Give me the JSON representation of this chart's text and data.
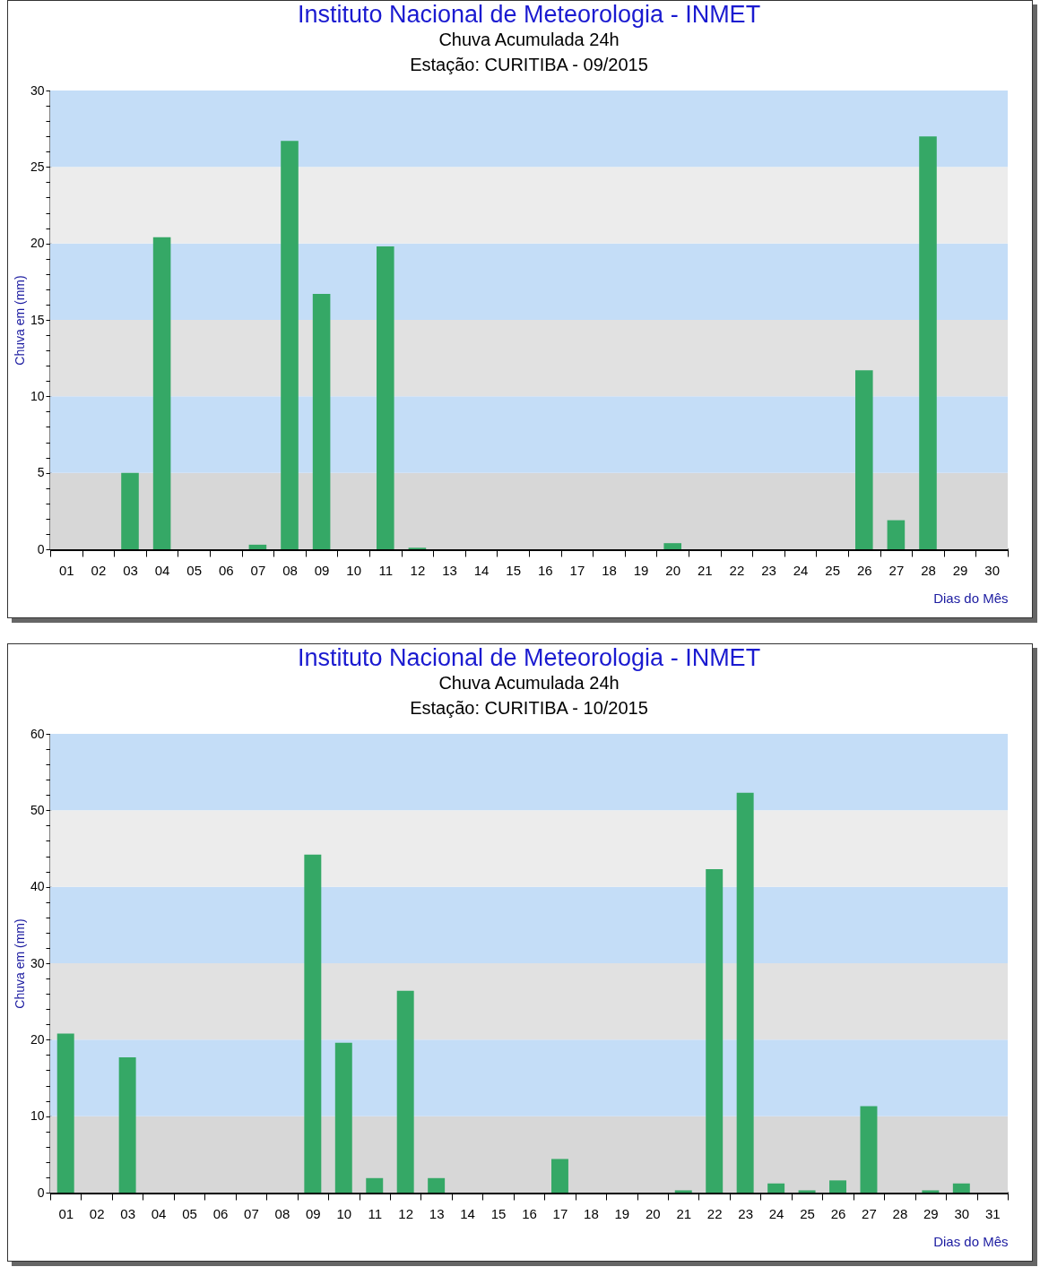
{
  "chart_data": [
    {
      "type": "bar",
      "title": "Instituto Nacional de Meteorologia - INMET",
      "subtitle": "Chuva Acumulada 24h\nEstação: CURITIBA - 09/2015",
      "xlabel": "Dias do Mês",
      "ylabel": "Chuva em (mm)",
      "categories": [
        "01",
        "02",
        "03",
        "04",
        "05",
        "06",
        "07",
        "08",
        "09",
        "10",
        "11",
        "12",
        "13",
        "14",
        "15",
        "16",
        "17",
        "18",
        "19",
        "20",
        "21",
        "22",
        "23",
        "24",
        "25",
        "26",
        "27",
        "28",
        "29",
        "30"
      ],
      "values": [
        0,
        0,
        5.0,
        20.4,
        0,
        0,
        0.3,
        26.7,
        16.7,
        0,
        19.8,
        0.1,
        0,
        0,
        0,
        0,
        0,
        0,
        0,
        0.4,
        0,
        0,
        0,
        0,
        0,
        11.7,
        1.9,
        27.0,
        0,
        0
      ],
      "color": "#35a866",
      "ylim": [
        0,
        30
      ],
      "yticks": [
        0,
        {
          "value": 1,
          "label": null
        },
        {
          "value": 2,
          "label": null
        },
        {
          "value": 3,
          "label": null
        },
        {
          "value": 4,
          "label": null
        },
        5,
        {
          "value": 6,
          "label": null
        },
        {
          "value": 7,
          "label": null
        },
        {
          "value": 8,
          "label": null
        },
        {
          "value": 9,
          "label": null
        },
        10,
        {
          "value": 11,
          "label": null
        },
        {
          "value": 12,
          "label": null
        },
        {
          "value": 13,
          "label": null
        },
        {
          "value": 14,
          "label": null
        },
        15,
        {
          "value": 16,
          "label": null
        },
        {
          "value": 17,
          "label": null
        },
        {
          "value": 18,
          "label": null
        },
        {
          "value": 19,
          "label": null
        },
        20,
        {
          "value": 21,
          "label": null
        },
        {
          "value": 22,
          "label": null
        },
        {
          "value": 23,
          "label": null
        },
        {
          "value": 24,
          "label": null
        },
        25,
        {
          "value": 26,
          "label": null
        },
        {
          "value": 27,
          "label": null
        },
        {
          "value": 28,
          "label": null
        },
        {
          "value": 29,
          "label": null
        },
        30
      ],
      "bands": [
        {
          "axis": "y",
          "from": 0,
          "to": 5,
          "color": "#d7d7d7"
        },
        {
          "axis": "y",
          "from": 5,
          "to": 10,
          "color": "#c4ddf7"
        },
        {
          "axis": "y",
          "from": 10,
          "to": 15,
          "color": "#e1e1e1"
        },
        {
          "axis": "y",
          "from": 15,
          "to": 20,
          "color": "#c4ddf7"
        },
        {
          "axis": "y",
          "from": 20,
          "to": 25,
          "color": "#ececec"
        },
        {
          "axis": "y",
          "from": 25,
          "to": 30,
          "color": "#c4ddf7"
        }
      ],
      "grid": false
    },
    {
      "type": "bar",
      "title": "Instituto Nacional de Meteorologia - INMET",
      "subtitle": "Chuva Acumulada 24h\nEstação: CURITIBA - 10/2015",
      "xlabel": "Dias do Mês",
      "ylabel": "Chuva em (mm)",
      "categories": [
        "01",
        "02",
        "03",
        "04",
        "05",
        "06",
        "07",
        "08",
        "09",
        "10",
        "11",
        "12",
        "13",
        "14",
        "15",
        "16",
        "17",
        "18",
        "19",
        "20",
        "21",
        "22",
        "23",
        "24",
        "25",
        "26",
        "27",
        "28",
        "29",
        "30",
        "31"
      ],
      "values": [
        20.8,
        0,
        17.7,
        0,
        0,
        0,
        0,
        0,
        44.2,
        19.6,
        1.9,
        26.4,
        1.9,
        0,
        0,
        0,
        4.4,
        0,
        0,
        0,
        0.3,
        42.3,
        52.3,
        1.2,
        0.3,
        1.6,
        11.3,
        0,
        0.3,
        1.2,
        0
      ],
      "color": "#35a866",
      "ylim": [
        0,
        60
      ],
      "yticks": [
        0,
        {
          "value": 2,
          "label": null
        },
        {
          "value": 4,
          "label": null
        },
        {
          "value": 6,
          "label": null
        },
        {
          "value": 8,
          "label": null
        },
        10,
        {
          "value": 12,
          "label": null
        },
        {
          "value": 14,
          "label": null
        },
        {
          "value": 16,
          "label": null
        },
        {
          "value": 18,
          "label": null
        },
        20,
        {
          "value": 22,
          "label": null
        },
        {
          "value": 24,
          "label": null
        },
        {
          "value": 26,
          "label": null
        },
        {
          "value": 28,
          "label": null
        },
        30,
        {
          "value": 32,
          "label": null
        },
        {
          "value": 34,
          "label": null
        },
        {
          "value": 36,
          "label": null
        },
        {
          "value": 38,
          "label": null
        },
        40,
        {
          "value": 42,
          "label": null
        },
        {
          "value": 44,
          "label": null
        },
        {
          "value": 46,
          "label": null
        },
        {
          "value": 48,
          "label": null
        },
        50,
        {
          "value": 52,
          "label": null
        },
        {
          "value": 54,
          "label": null
        },
        {
          "value": 56,
          "label": null
        },
        {
          "value": 58,
          "label": null
        },
        60
      ],
      "bands": [
        {
          "axis": "y",
          "from": 0,
          "to": 10,
          "color": "#d7d7d7"
        },
        {
          "axis": "y",
          "from": 10,
          "to": 20,
          "color": "#c4ddf7"
        },
        {
          "axis": "y",
          "from": 20,
          "to": 30,
          "color": "#e1e1e1"
        },
        {
          "axis": "y",
          "from": 30,
          "to": 40,
          "color": "#c4ddf7"
        },
        {
          "axis": "y",
          "from": 40,
          "to": 50,
          "color": "#ececec"
        },
        {
          "axis": "y",
          "from": 50,
          "to": 60,
          "color": "#c4ddf7"
        }
      ],
      "grid": false
    }
  ]
}
